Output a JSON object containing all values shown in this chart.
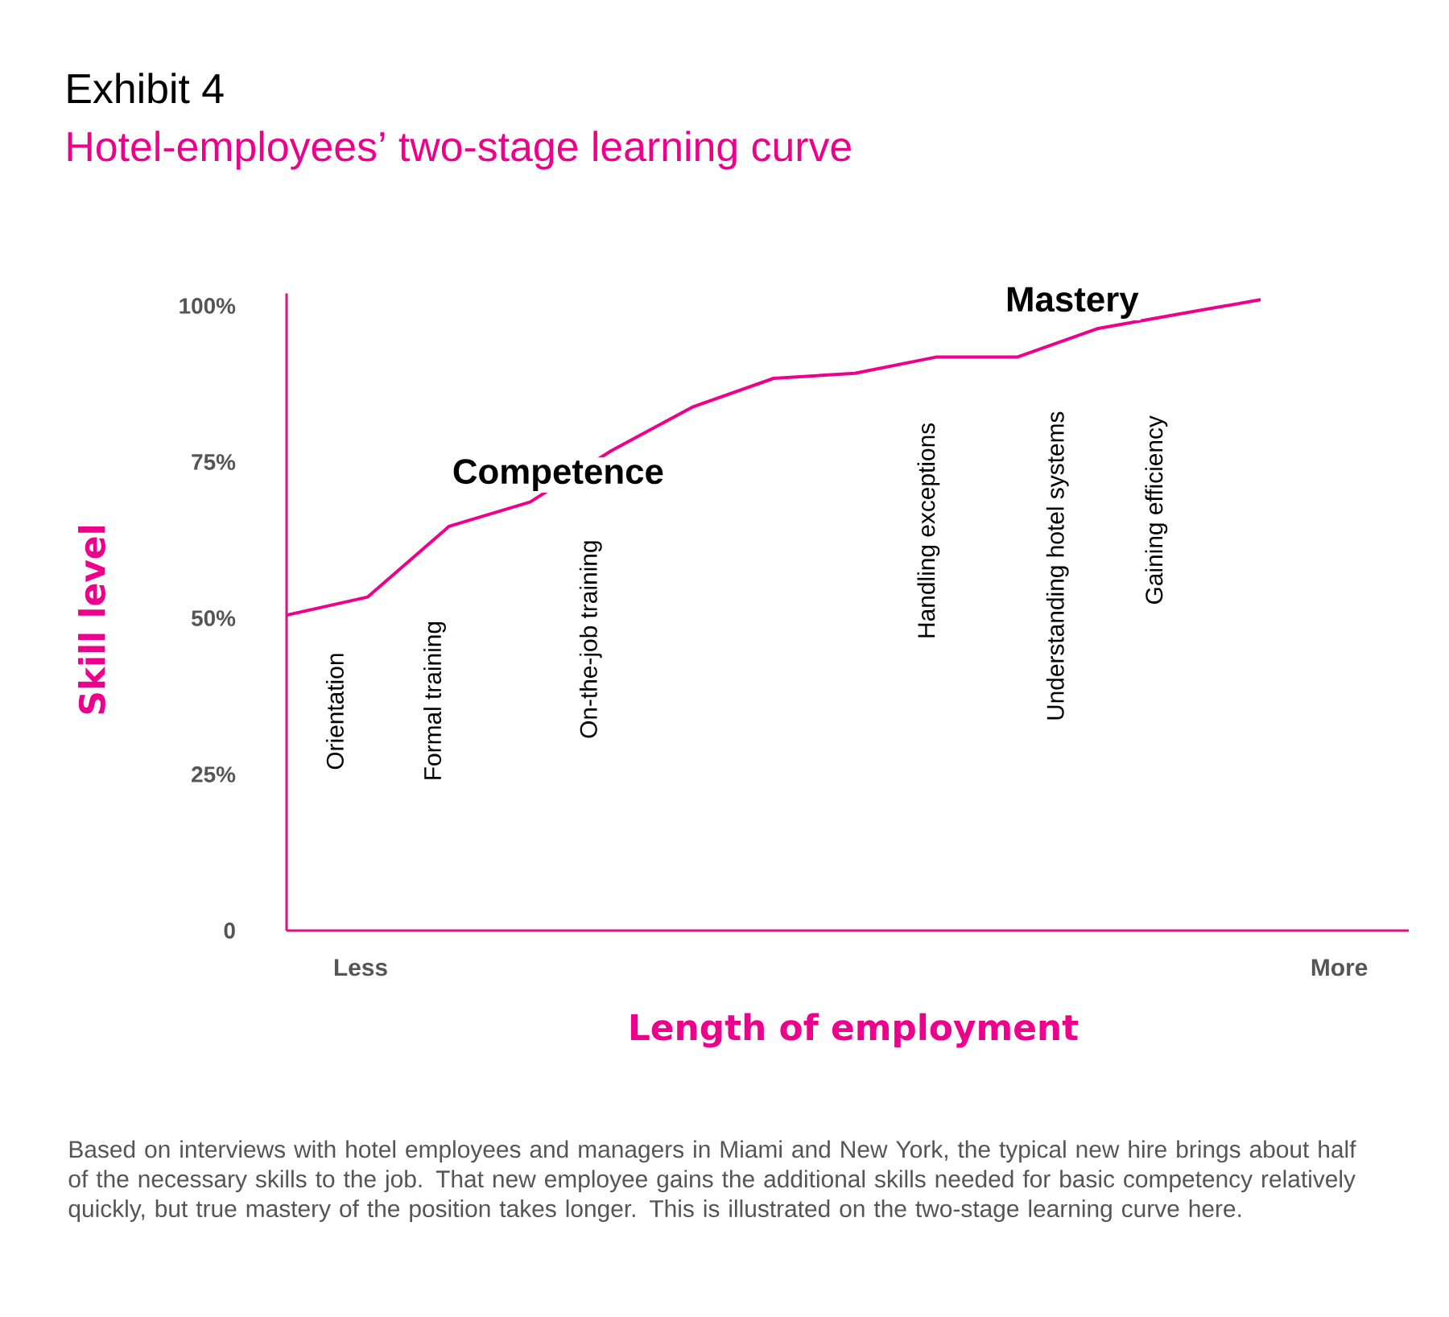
{
  "chart_data": {
    "type": "line",
    "title": "Exhibit 4",
    "subtitle": "Hotel-employees’ two-stage learning curve",
    "xlabel": "Length of employment",
    "ylabel": "Skill level",
    "categories": [
      null,
      null,
      null,
      null,
      null,
      null,
      null,
      null,
      null,
      null,
      null,
      null,
      null
    ],
    "values": [
      50.5,
      53.4,
      64.7,
      68.6,
      76.8,
      83.8,
      88.4,
      89.2,
      91.8,
      91.8,
      96.4,
      98.7,
      101
    ],
    "color": "#ec008c",
    "marker": "none",
    "line_style": "solid",
    "ylim": [
      0,
      102
    ],
    "yticks": [
      0,
      {
        "value": 25,
        "label": "25%"
      },
      {
        "value": 50,
        "label": "50%"
      },
      {
        "value": 75,
        "label": "75%"
      },
      {
        "value": 100,
        "label": "100%"
      }
    ],
    "annotations": [
      "Orientation",
      "Formal training",
      "On-the-job training",
      "Handling exceptions",
      "Understanding hotel systems",
      "Gaining efficiency",
      "Competence",
      "Mastery",
      "Less",
      "More",
      "Based on interviews with hotel employees and managers in Miami and New York, the typical new hire brings about half of the necessary skills to the job. That new employee gains the additional skills needed for basic competency relatively quickly, but true mastery of the position takes longer. This is illustrated on the two-stage learning curve here."
    ]
  }
}
